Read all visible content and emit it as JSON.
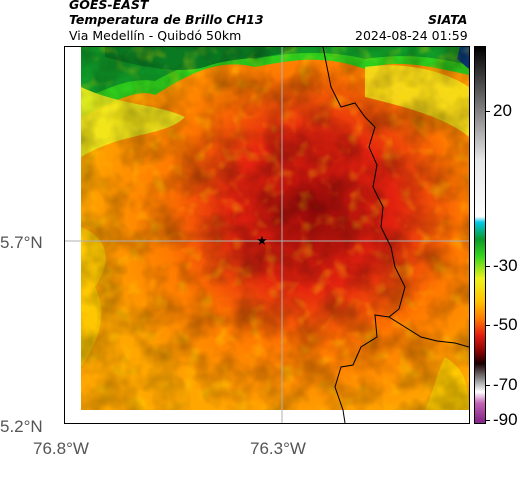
{
  "header": {
    "line1": "GOES-EAST",
    "line2": "Temperatura de Brillo CH13",
    "line3": "Via Medellín - Quibdó 50km",
    "org": "SIATA",
    "datetime": "2024-08-24 01:59"
  },
  "axes": {
    "lat_labels": [
      "5.7°N",
      "5.2°N"
    ],
    "lon_labels": [
      "76.8°W",
      "76.3°W"
    ]
  },
  "colorbar": {
    "labels": [
      "20",
      "-30",
      "-50",
      "-70",
      "-90"
    ],
    "stops": [
      {
        "value": 40,
        "color": "#000000"
      },
      {
        "value": 0,
        "color": "#e6e6e6"
      },
      {
        "value": -20,
        "color": "#ffffff"
      },
      {
        "value": -22,
        "color": "#00c8e6"
      },
      {
        "value": -28,
        "color": "#0a9a2a"
      },
      {
        "value": -34,
        "color": "#36d61e"
      },
      {
        "value": -42,
        "color": "#eef21c"
      },
      {
        "value": -50,
        "color": "#ffc200"
      },
      {
        "value": -56,
        "color": "#ff7d00"
      },
      {
        "value": -62,
        "color": "#e31d10"
      },
      {
        "value": -68,
        "color": "#820404"
      },
      {
        "value": -72,
        "color": "#1a0000"
      },
      {
        "value": -78,
        "color": "#9a9a9a"
      },
      {
        "value": -82,
        "color": "#ffffff"
      },
      {
        "value": -86,
        "color": "#c063b4"
      },
      {
        "value": -92,
        "color": "#8a2a8e"
      }
    ]
  },
  "marker": {
    "icon": "star-icon"
  }
}
